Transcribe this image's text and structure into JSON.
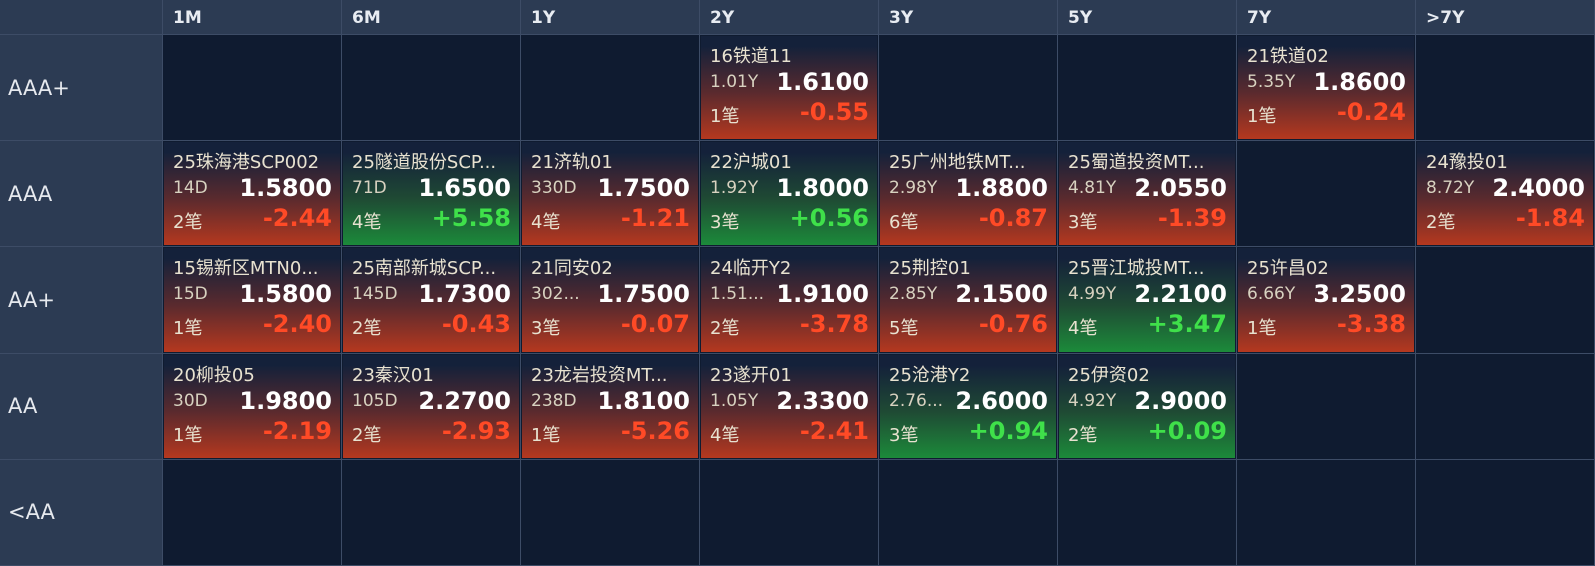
{
  "grid": {
    "columns": [
      "1M",
      "6M",
      "1Y",
      "2Y",
      "3Y",
      "5Y",
      "7Y",
      ">7Y"
    ],
    "rows": [
      {
        "label": "AAA+",
        "cells": [
          null,
          null,
          null,
          {
            "name": "16铁道11",
            "term": "1.01Y",
            "price": "1.6100",
            "count": "1笔",
            "change": "-0.55"
          },
          null,
          null,
          {
            "name": "21铁道02",
            "term": "5.35Y",
            "price": "1.8600",
            "count": "1笔",
            "change": "-0.24"
          },
          null
        ]
      },
      {
        "label": "AAA",
        "cells": [
          {
            "name": "25珠海港SCP002",
            "term": "14D",
            "price": "1.5800",
            "count": "2笔",
            "change": "-2.44"
          },
          {
            "name": "25隧道股份SCP...",
            "term": "71D",
            "price": "1.6500",
            "count": "4笔",
            "change": "+5.58"
          },
          {
            "name": "21济轨01",
            "term": "330D",
            "price": "1.7500",
            "count": "4笔",
            "change": "-1.21"
          },
          {
            "name": "22沪城01",
            "term": "1.92Y",
            "price": "1.8000",
            "count": "3笔",
            "change": "+0.56"
          },
          {
            "name": "25广州地铁MT...",
            "term": "2.98Y",
            "price": "1.8800",
            "count": "6笔",
            "change": "-0.87"
          },
          {
            "name": "25蜀道投资MT...",
            "term": "4.81Y",
            "price": "2.0550",
            "count": "3笔",
            "change": "-1.39"
          },
          null,
          {
            "name": "24豫投01",
            "term": "8.72Y",
            "price": "2.4000",
            "count": "2笔",
            "change": "-1.84"
          }
        ]
      },
      {
        "label": "AA+",
        "cells": [
          {
            "name": "15锡新区MTN0...",
            "term": "15D",
            "price": "1.5800",
            "count": "1笔",
            "change": "-2.40"
          },
          {
            "name": "25南部新城SCP...",
            "term": "145D",
            "price": "1.7300",
            "count": "2笔",
            "change": "-0.43"
          },
          {
            "name": "21同安02",
            "term": "302...",
            "price": "1.7500",
            "count": "3笔",
            "change": "-0.07"
          },
          {
            "name": "24临开Y2",
            "term": "1.51...",
            "price": "1.9100",
            "count": "2笔",
            "change": "-3.78"
          },
          {
            "name": "25荆控01",
            "term": "2.85Y",
            "price": "2.1500",
            "count": "5笔",
            "change": "-0.76"
          },
          {
            "name": "25晋江城投MT...",
            "term": "4.99Y",
            "price": "2.2100",
            "count": "4笔",
            "change": "+3.47"
          },
          {
            "name": "25许昌02",
            "term": "6.66Y",
            "price": "3.2500",
            "count": "1笔",
            "change": "-3.38"
          },
          null
        ]
      },
      {
        "label": "AA",
        "cells": [
          {
            "name": "20柳投05",
            "term": "30D",
            "price": "1.9800",
            "count": "1笔",
            "change": "-2.19"
          },
          {
            "name": "23秦汉01",
            "term": "105D",
            "price": "2.2700",
            "count": "2笔",
            "change": "-2.93"
          },
          {
            "name": "23龙岩投资MT...",
            "term": "238D",
            "price": "1.8100",
            "count": "1笔",
            "change": "-5.26"
          },
          {
            "name": "23遂开01",
            "term": "1.05Y",
            "price": "2.3300",
            "count": "4笔",
            "change": "-2.41"
          },
          {
            "name": "25沧港Y2",
            "term": "2.76...",
            "price": "2.6000",
            "count": "3笔",
            "change": "+0.94"
          },
          {
            "name": "25伊资02",
            "term": "4.92Y",
            "price": "2.9000",
            "count": "2笔",
            "change": "+0.09"
          },
          null,
          null
        ]
      },
      {
        "label": "<AA",
        "cells": [
          null,
          null,
          null,
          null,
          null,
          null,
          null,
          null
        ]
      }
    ]
  }
}
